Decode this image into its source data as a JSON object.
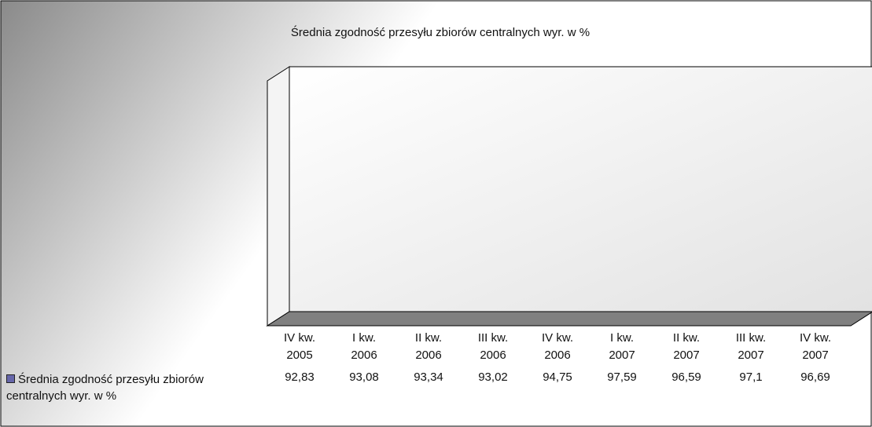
{
  "chart_data": {
    "type": "bar",
    "title": "Średnia zgodność przesyłu zbiorów centralnych wyr. w %",
    "categories": [
      "IV kw. 2005",
      "I kw. 2006",
      "II kw. 2006",
      "III kw. 2006",
      "IV kw. 2006",
      "I kw. 2007",
      "II kw. 2007",
      "III kw. 2007",
      "IV kw. 2007"
    ],
    "series": [
      {
        "name": "Średnia zgodność przesyłu zbiorów centralnych wyr. w %",
        "color": "#6666aa",
        "values": [
          92.83,
          93.08,
          93.34,
          93.02,
          94.75,
          97.59,
          96.59,
          97.1,
          96.69
        ],
        "value_labels": [
          "92,83",
          "93,08",
          "93,34",
          "93,02",
          "94,75",
          "97,59",
          "96,59",
          "97,1",
          "96,69"
        ]
      }
    ],
    "ylim": [
      90,
      98
    ],
    "yticks": [
      90,
      91,
      92,
      93,
      94,
      95,
      96,
      97,
      98
    ],
    "grid": true
  }
}
